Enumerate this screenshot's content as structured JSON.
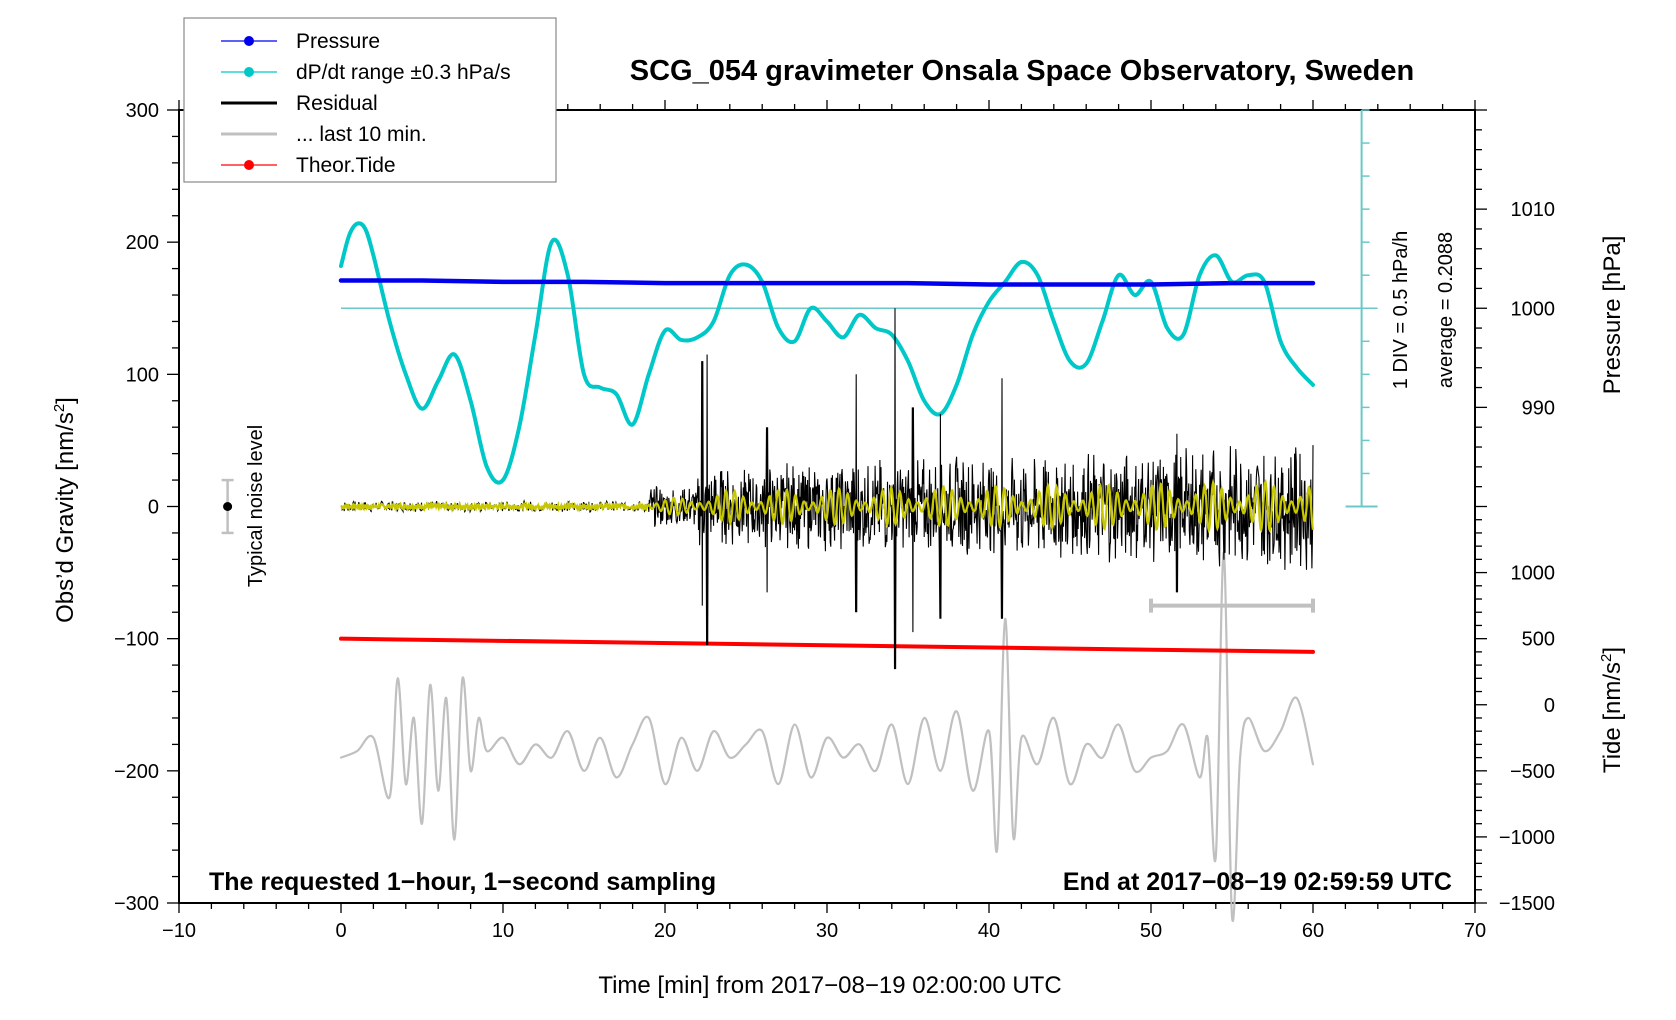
{
  "chart_data": {
    "type": "line",
    "title": "SCG_054 gravimeter Onsala Space Observatory, Sweden",
    "xlabel": "Time [min] from 2017−08−19 02:00:00 UTC",
    "ylabel": "Obs'd Gravity [nm/s²]",
    "ylabel_main": "Obs’d Gravity [nm/s",
    "ylabel_sup": "2",
    "ylabel_end": "]",
    "y2label_pressure": "Pressure [hPa]",
    "y2label_tide_main": "Tide [nm/s",
    "y2label_tide_sup": "2",
    "y2label_tide_end": "]",
    "xlim": [
      -10,
      70
    ],
    "ylim": [
      -300,
      300
    ],
    "xticks": [
      -10,
      0,
      10,
      20,
      30,
      40,
      50,
      60,
      70
    ],
    "xtick_labels": [
      "−10",
      "0",
      "10",
      "20",
      "30",
      "40",
      "50",
      "60",
      "70"
    ],
    "yticks": [
      -300,
      -200,
      -100,
      0,
      100,
      200,
      300
    ],
    "ytick_labels": [
      "−300",
      "−200",
      "−100",
      "0",
      "100",
      "200",
      "300"
    ],
    "pressure_axis": {
      "ticks": [
        990,
        1000,
        1010
      ],
      "tick_labels": [
        "990",
        "1000",
        "1010"
      ]
    },
    "tide_axis": {
      "ticks": [
        -1500,
        -1000,
        -500,
        0,
        500,
        1000
      ],
      "tick_labels": [
        "−1500",
        "−1000",
        "−500",
        "0",
        "500",
        "1000"
      ]
    },
    "grid": false,
    "legend_position": "top-left",
    "legend": [
      {
        "label": "Pressure",
        "color": "#0000ee",
        "marker": true
      },
      {
        "label": "dP/dt range ±0.3 hPa/s",
        "color": "#00c8c8",
        "marker": true
      },
      {
        "label": "Residual",
        "color": "#000000",
        "marker": false
      },
      {
        "label": "... last 10 min.",
        "color": "#c0c0c0",
        "marker": false
      },
      {
        "label": "Theor.Tide",
        "color": "#ff0000",
        "marker": true
      }
    ],
    "dpdt_scale_text": "1 DIV = 0.5 hPa/h",
    "dpdt_average_text": "average = 0.2088",
    "dpdt_reference_y": 150,
    "noise_label": "Typical noise level",
    "noise_level": {
      "x": -7,
      "center": 0,
      "half_range": 20
    },
    "last10_bracket": {
      "x_start": 50,
      "x_end": 60,
      "y": -75
    },
    "annotation_left": "The requested 1−hour, 1−second sampling",
    "annotation_right": "End at 2017−08−19 02:59:59 UTC",
    "series": [
      {
        "name": "Pressure",
        "color": "#0000ee",
        "x": [
          0,
          5,
          10,
          15,
          20,
          25,
          30,
          35,
          40,
          45,
          50,
          55,
          60
        ],
        "y": [
          171,
          171,
          170,
          170,
          169,
          169,
          169,
          169,
          168,
          168,
          168,
          169,
          169
        ]
      },
      {
        "name": "dP/dt",
        "color": "#00c8c8",
        "x": [
          0,
          0.5,
          1,
          1.5,
          2,
          3,
          4,
          5,
          6,
          7,
          8,
          9,
          10,
          11,
          12,
          13,
          14,
          15,
          16,
          17,
          18,
          19,
          20,
          21,
          22,
          23,
          24,
          25,
          26,
          27,
          28,
          29,
          30,
          31,
          32,
          33,
          34,
          35,
          36,
          37,
          38,
          39,
          40,
          41,
          42,
          43,
          44,
          45,
          46,
          47,
          48,
          49,
          50,
          51,
          52,
          53,
          54,
          55,
          56,
          57,
          58,
          59,
          60
        ],
        "y": [
          182,
          205,
          214,
          210,
          190,
          140,
          100,
          74,
          95,
          115,
          80,
          30,
          20,
          60,
          130,
          200,
          175,
          100,
          90,
          85,
          62,
          100,
          133,
          126,
          128,
          140,
          175,
          183,
          170,
          135,
          125,
          150,
          140,
          128,
          145,
          135,
          130,
          110,
          80,
          70,
          92,
          130,
          155,
          170,
          185,
          175,
          140,
          110,
          108,
          140,
          175,
          160,
          170,
          135,
          130,
          175,
          190,
          170,
          175,
          170,
          125,
          105,
          92
        ]
      },
      {
        "name": "Residual",
        "color": "#000000",
        "description": "high-frequency residual; quiet (±3) until ~19 min, then oscillations up to ±100 nm/s²",
        "spikes": [
          {
            "x": 22.3,
            "min": -75,
            "max": 110
          },
          {
            "x": 22.6,
            "min": -105,
            "max": 115
          },
          {
            "x": 26.3,
            "min": -65,
            "max": 60
          },
          {
            "x": 31.8,
            "min": -80,
            "max": 100
          },
          {
            "x": 34.2,
            "min": -123,
            "max": 150
          },
          {
            "x": 35.3,
            "min": -95,
            "max": 75
          },
          {
            "x": 37.0,
            "min": -85,
            "max": 70
          },
          {
            "x": 40.8,
            "min": -85,
            "max": 97
          },
          {
            "x": 51.6,
            "min": -65,
            "max": 55
          }
        ]
      },
      {
        "name": "Residual (filtered)",
        "color": "#c8c800"
      },
      {
        "name": "Theor.Tide",
        "color": "#ff0000",
        "x": [
          0,
          60
        ],
        "y": [
          -100,
          -110
        ]
      },
      {
        "name": "... last 10 min.",
        "color": "#c0c0c0",
        "description": "last 10 min of residual, stretched across 0–60 on the axis",
        "x": [
          0,
          1,
          2,
          3,
          3.5,
          4,
          4.5,
          5,
          5.5,
          6,
          6.5,
          7,
          7.5,
          8,
          8.5,
          9,
          10,
          11,
          12,
          13,
          14,
          15,
          16,
          17,
          18,
          19,
          20,
          21,
          22,
          23,
          24,
          25,
          26,
          27,
          28,
          29,
          30,
          31,
          32,
          33,
          34,
          35,
          36,
          37,
          38,
          39,
          40,
          40.5,
          41,
          41.5,
          42,
          43,
          44,
          45,
          46,
          47,
          48,
          49,
          50,
          51,
          52,
          53,
          53.5,
          54,
          54.5,
          55,
          55.5,
          56,
          57,
          58,
          59,
          60
        ],
        "y": [
          -190,
          -185,
          -175,
          -220,
          -130,
          -210,
          -160,
          -240,
          -135,
          -215,
          -145,
          -252,
          -130,
          -200,
          -160,
          -185,
          -175,
          -195,
          -180,
          -190,
          -170,
          -200,
          -175,
          -205,
          -180,
          -160,
          -210,
          -175,
          -200,
          -170,
          -190,
          -180,
          -170,
          -210,
          -165,
          -205,
          -175,
          -190,
          -180,
          -200,
          -165,
          -210,
          -160,
          -200,
          -155,
          -215,
          -170,
          -260,
          -85,
          -250,
          -175,
          -195,
          -160,
          -210,
          -180,
          -190,
          -165,
          -200,
          -190,
          -185,
          -165,
          -205,
          -175,
          -265,
          -35,
          -310,
          -190,
          -160,
          -185,
          -170,
          -145,
          -195
        ]
      }
    ]
  }
}
